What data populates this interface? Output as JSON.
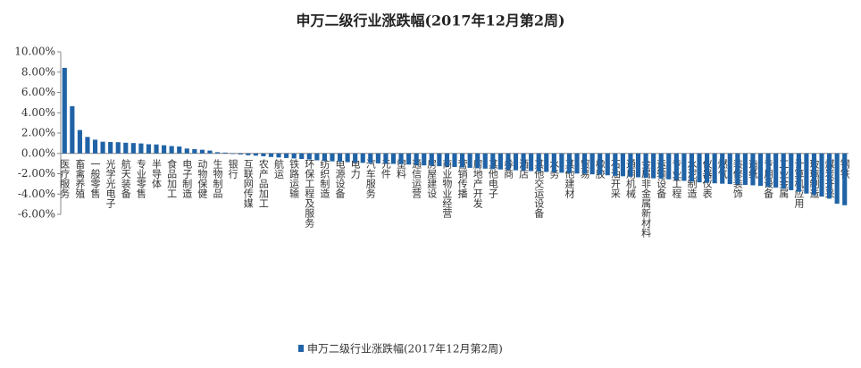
{
  "chart_data": {
    "type": "bar",
    "title": "申万二级行业涨跌幅(2017年12月第2周)",
    "categories": [
      "医疗服务",
      null,
      "畜禽养殖",
      null,
      "一般零售",
      null,
      "光学光电子",
      null,
      "航天装备",
      null,
      "专业零售",
      null,
      "半导体",
      null,
      "食品加工",
      null,
      "电子制造",
      null,
      "动物保健",
      null,
      "生物制品",
      null,
      "银行",
      null,
      "互联网传媒",
      null,
      "农产品加工",
      null,
      "航运",
      null,
      "铁路运输",
      null,
      "环保工程及服务",
      null,
      "纺织制造",
      null,
      "电源设备",
      null,
      "电力",
      null,
      "汽车服务",
      null,
      "元件",
      null,
      "塑料",
      null,
      "通信运营",
      null,
      "房屋建设",
      null,
      "商业物业经营",
      null,
      "营销传播",
      null,
      "房地产开发",
      null,
      "其他电子",
      null,
      "券商",
      null,
      "酒店",
      null,
      "其他交运设备",
      null,
      "水务",
      null,
      "其他建材",
      null,
      "贸易",
      null,
      "橡胶",
      null,
      "石油开采",
      null,
      "通用机械",
      null,
      "金属非金属新材料",
      null,
      "运输设备",
      null,
      "专业工程",
      null,
      "水泥制造",
      null,
      "仪器仪表",
      null,
      "燃气",
      null,
      "装修装饰",
      null,
      "造纸",
      null,
      "专用设备",
      null,
      "工业金属",
      null,
      "计算机应用",
      null,
      "玻璃制造",
      null,
      "煤炭开采",
      null,
      "钢铁"
    ],
    "series": [
      {
        "name": "申万二级行业涨跌幅(2017年12月第2周)",
        "color": "#2063a6",
        "values": [
          8.42,
          4.65,
          2.3,
          1.62,
          1.35,
          1.15,
          1.12,
          1.1,
          1.05,
          1.02,
          0.98,
          0.9,
          0.88,
          0.8,
          0.72,
          0.68,
          0.48,
          0.42,
          0.36,
          0.28,
          0.12,
          0.08,
          -0.05,
          -0.1,
          -0.18,
          -0.22,
          -0.28,
          -0.35,
          -0.4,
          -0.45,
          -0.5,
          -0.55,
          -0.6,
          -0.68,
          -0.72,
          -0.78,
          -0.82,
          -0.86,
          -0.9,
          -0.93,
          -0.96,
          -0.98,
          -1.0,
          -1.03,
          -1.06,
          -1.1,
          -1.14,
          -1.18,
          -1.22,
          -1.26,
          -1.3,
          -1.34,
          -1.38,
          -1.42,
          -1.46,
          -1.5,
          -1.54,
          -1.58,
          -1.62,
          -1.66,
          -1.7,
          -1.74,
          -1.78,
          -1.82,
          -1.86,
          -1.9,
          -1.94,
          -1.98,
          -2.02,
          -2.06,
          -2.1,
          -2.15,
          -2.2,
          -2.25,
          -2.3,
          -2.35,
          -2.4,
          -2.45,
          -2.5,
          -2.55,
          -2.62,
          -2.7,
          -2.78,
          -2.85,
          -2.9,
          -2.94,
          -2.98,
          -3.02,
          -3.06,
          -3.1,
          -3.14,
          -3.2,
          -3.28,
          -3.36,
          -3.48,
          -3.62,
          -3.78,
          -3.95,
          -4.1,
          -4.25,
          -4.45,
          -4.95,
          -5.1
        ]
      }
    ],
    "ylim": [
      -6,
      10
    ],
    "yticks": [
      {
        "value": -6,
        "label": "-6.00%"
      },
      {
        "value": -4,
        "label": "-4.00%"
      },
      {
        "value": -2,
        "label": "-2.00%"
      },
      {
        "value": 0,
        "label": "0.00%"
      },
      {
        "value": 2,
        "label": "2.00%"
      },
      {
        "value": 4,
        "label": "4.00%"
      },
      {
        "value": 6,
        "label": "6.00%"
      },
      {
        "value": 8,
        "label": "8.00%"
      },
      {
        "value": 10,
        "label": "10.00%"
      }
    ],
    "grid": false,
    "legend": "bottom"
  }
}
